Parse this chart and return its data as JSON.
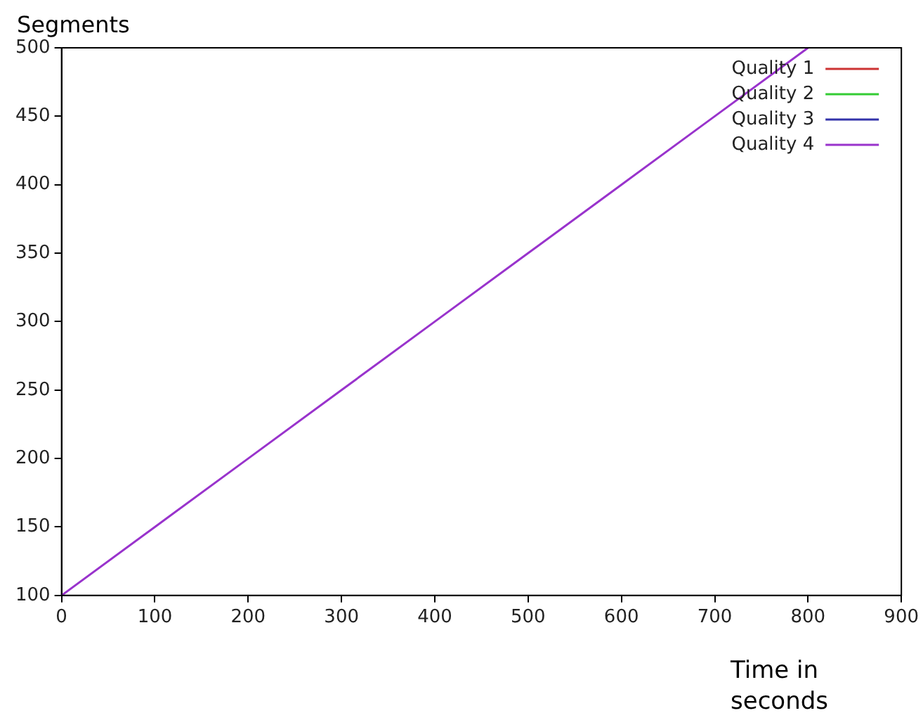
{
  "chart_data": {
    "type": "line",
    "xlabel": "Time in seconds",
    "ylabel": "Segments",
    "x": [
      0,
      100,
      200,
      300,
      400,
      500,
      600,
      700,
      800
    ],
    "series": [
      {
        "name": "Quality 1",
        "color": "#cc3333",
        "values": [
          null,
          null,
          null,
          null,
          null,
          null,
          null,
          null,
          null
        ]
      },
      {
        "name": "Quality 2",
        "color": "#33cc33",
        "values": [
          null,
          null,
          null,
          null,
          null,
          null,
          null,
          null,
          null
        ]
      },
      {
        "name": "Quality 3",
        "color": "#3333aa",
        "values": [
          null,
          null,
          null,
          null,
          null,
          null,
          null,
          null,
          null
        ]
      },
      {
        "name": "Quality 4",
        "color": "#9933cc",
        "values": [
          100,
          150,
          200,
          250,
          300,
          350,
          400,
          450,
          500
        ]
      }
    ],
    "xlim": [
      0,
      900
    ],
    "xticks": [
      0,
      100,
      200,
      300,
      400,
      500,
      600,
      700,
      800,
      900
    ],
    "ylim": [
      100,
      500
    ],
    "yticks": [
      100,
      150,
      200,
      250,
      300,
      350,
      400,
      450,
      500
    ],
    "grid": false,
    "legend": "top right",
    "marker": "none",
    "line_style": "solid"
  }
}
